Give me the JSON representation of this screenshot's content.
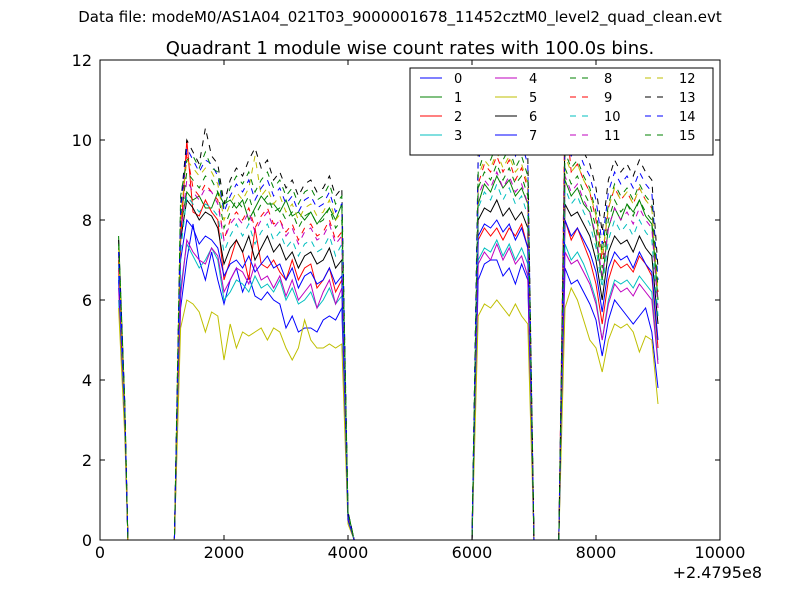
{
  "header": {
    "suptitle": "Data file: modeM0/AS1A04_021T03_9000001678_11452cztM0_level2_quad_clean.evt"
  },
  "chart_data": {
    "type": "line",
    "title": "Quadrant 1 module wise count rates with 100.0s bins.",
    "xlabel": "",
    "ylabel": "",
    "offset_label": "+2.4795e8",
    "xlim": [
      0,
      10000
    ],
    "ylim": [
      0,
      12
    ],
    "xticks": [
      0,
      2000,
      4000,
      6000,
      8000,
      10000
    ],
    "yticks": [
      0,
      2,
      4,
      6,
      8,
      10,
      12
    ],
    "grid": false,
    "legend_position": "top-right",
    "x": [
      300,
      400,
      450,
      1200,
      1300,
      1400,
      1500,
      1600,
      1700,
      1800,
      1900,
      2000,
      2100,
      2200,
      2300,
      2400,
      2500,
      2600,
      2700,
      2800,
      2900,
      3000,
      3100,
      3200,
      3300,
      3400,
      3500,
      3600,
      3700,
      3800,
      3900,
      4000,
      4100,
      6000,
      6100,
      6200,
      6300,
      6400,
      6500,
      6600,
      6700,
      6800,
      6900,
      7000,
      7400,
      7500,
      7600,
      7700,
      7800,
      7900,
      8000,
      8100,
      8200,
      8300,
      8400,
      8500,
      8600,
      8700,
      8800,
      8900,
      9000
    ],
    "series": [
      {
        "name": "0",
        "color": "#0000ff",
        "dash": "solid",
        "values": [
          6.5,
          3.0,
          0,
          0,
          5.8,
          7.0,
          7.9,
          7.0,
          6.5,
          7.2,
          6.5,
          5.9,
          6.5,
          6.8,
          6.2,
          6.6,
          6.1,
          6.0,
          6.2,
          6.0,
          5.9,
          5.3,
          5.6,
          5.2,
          5.3,
          5.3,
          5.2,
          5.5,
          5.6,
          5.5,
          5.8,
          0.6,
          0,
          0,
          6.5,
          6.9,
          7.0,
          7.0,
          6.6,
          6.8,
          6.4,
          6.9,
          6.5,
          0,
          0,
          6.8,
          6.4,
          6.5,
          6.2,
          5.9,
          5.5,
          4.6,
          5.5,
          6.0,
          5.8,
          5.6,
          5.4,
          5.6,
          5.8,
          5.2,
          3.8
        ]
      },
      {
        "name": "1",
        "color": "#008000",
        "dash": "solid",
        "values": [
          7.6,
          3.4,
          0,
          0,
          7.8,
          8.7,
          8.5,
          8.6,
          8.3,
          8.3,
          8.7,
          8.4,
          8.5,
          8.3,
          8.5,
          8.0,
          8.3,
          8.6,
          8.4,
          8.4,
          8.2,
          8.5,
          8.1,
          8.2,
          8.0,
          8.2,
          7.9,
          8.1,
          8.3,
          8.0,
          8.4,
          0.7,
          0,
          0,
          8.4,
          8.9,
          8.7,
          9.1,
          8.8,
          9.0,
          8.6,
          8.8,
          8.4,
          0,
          0,
          9.0,
          8.6,
          8.8,
          8.4,
          8.2,
          7.5,
          6.5,
          7.8,
          8.3,
          8.0,
          8.4,
          8.2,
          8.5,
          8.1,
          7.9,
          6.0
        ]
      },
      {
        "name": "2",
        "color": "#ff0000",
        "dash": "solid",
        "values": [
          6.8,
          3.1,
          0,
          0,
          7.5,
          10.0,
          8.2,
          8.1,
          8.5,
          8.2,
          8.0,
          6.5,
          7.0,
          7.5,
          7.2,
          6.5,
          7.8,
          6.9,
          6.8,
          7.0,
          6.7,
          6.5,
          7.0,
          6.5,
          6.8,
          6.9,
          6.3,
          6.5,
          6.8,
          6.2,
          6.5,
          0.6,
          0,
          0,
          7.5,
          7.8,
          7.6,
          7.8,
          7.5,
          7.8,
          7.6,
          7.9,
          7.3,
          0,
          0,
          8.0,
          7.5,
          7.8,
          7.4,
          7.0,
          6.4,
          5.4,
          6.5,
          7.0,
          6.8,
          6.9,
          6.7,
          7.1,
          6.9,
          6.6,
          4.8
        ]
      },
      {
        "name": "3",
        "color": "#00bfbf",
        "dash": "solid",
        "values": [
          6.0,
          2.8,
          0,
          0,
          6.3,
          7.4,
          7.1,
          6.8,
          7.0,
          7.3,
          7.0,
          6.0,
          6.2,
          6.5,
          6.4,
          6.2,
          6.6,
          6.3,
          6.4,
          6.2,
          6.5,
          6.0,
          6.3,
          5.9,
          6.0,
          6.2,
          5.8,
          6.0,
          6.3,
          5.9,
          6.1,
          0.5,
          0,
          0,
          7.0,
          7.3,
          7.2,
          7.5,
          7.1,
          7.4,
          7.0,
          7.3,
          6.9,
          0,
          0,
          7.4,
          7.0,
          7.2,
          6.9,
          6.5,
          6.0,
          5.0,
          6.0,
          6.5,
          6.4,
          6.5,
          6.3,
          6.6,
          6.4,
          6.2,
          4.5
        ]
      },
      {
        "name": "4",
        "color": "#bf00bf",
        "dash": "solid",
        "values": [
          6.3,
          2.9,
          0,
          0,
          6.1,
          7.5,
          7.2,
          7.0,
          6.9,
          7.3,
          7.1,
          6.2,
          6.5,
          6.8,
          6.7,
          6.4,
          6.9,
          6.5,
          6.6,
          6.3,
          6.6,
          6.1,
          6.5,
          6.0,
          6.2,
          6.4,
          5.8,
          6.2,
          6.5,
          5.9,
          6.3,
          0.5,
          0,
          0,
          6.9,
          7.2,
          7.0,
          7.4,
          7.0,
          7.3,
          6.9,
          7.1,
          6.6,
          0,
          0,
          7.2,
          6.9,
          7.0,
          6.7,
          6.4,
          5.9,
          5.0,
          5.9,
          6.4,
          6.2,
          6.3,
          6.1,
          6.4,
          6.2,
          6.0,
          4.4
        ]
      },
      {
        "name": "5",
        "color": "#bfbf00",
        "dash": "solid",
        "values": [
          5.8,
          2.6,
          0,
          0,
          5.3,
          6.0,
          5.9,
          5.7,
          5.2,
          5.7,
          5.6,
          4.5,
          5.4,
          4.8,
          5.2,
          5.1,
          5.2,
          5.3,
          5.0,
          5.3,
          5.2,
          4.8,
          4.5,
          4.8,
          5.5,
          5.0,
          4.8,
          4.8,
          4.9,
          4.8,
          4.9,
          0.4,
          0,
          0,
          5.6,
          5.9,
          5.8,
          6.0,
          5.8,
          5.6,
          5.9,
          5.6,
          5.4,
          0,
          0,
          5.8,
          6.3,
          6.0,
          5.5,
          5.0,
          4.8,
          4.2,
          5.0,
          5.4,
          5.3,
          5.4,
          5.2,
          4.7,
          5.1,
          5.0,
          3.4
        ]
      },
      {
        "name": "6",
        "color": "#000000",
        "dash": "solid",
        "values": [
          7.0,
          3.2,
          0,
          0,
          7.5,
          8.5,
          8.3,
          8.0,
          8.2,
          8.1,
          7.8,
          6.9,
          7.3,
          7.5,
          7.2,
          7.6,
          7.0,
          7.3,
          7.6,
          7.2,
          7.4,
          7.0,
          7.2,
          6.8,
          7.1,
          7.2,
          6.9,
          7.0,
          7.3,
          6.8,
          7.0,
          0.6,
          0,
          0,
          8.0,
          8.3,
          8.2,
          8.5,
          8.1,
          8.3,
          8.0,
          8.2,
          7.8,
          0,
          0,
          8.4,
          8.1,
          8.2,
          7.9,
          7.6,
          7.0,
          6.0,
          7.2,
          7.6,
          7.4,
          7.5,
          7.2,
          7.6,
          7.3,
          7.1,
          5.4
        ]
      },
      {
        "name": "7",
        "color": "#0000ff",
        "dash": "solid",
        "values": [
          6.6,
          3.0,
          0,
          0,
          7.0,
          8.0,
          7.8,
          7.4,
          7.6,
          7.5,
          7.3,
          6.6,
          6.9,
          7.0,
          6.8,
          7.1,
          6.7,
          6.9,
          7.1,
          6.8,
          6.9,
          6.5,
          6.8,
          6.3,
          6.6,
          6.7,
          6.4,
          6.5,
          6.8,
          6.4,
          6.6,
          0.5,
          0,
          0,
          7.6,
          7.9,
          7.8,
          8.0,
          7.7,
          7.9,
          7.5,
          7.8,
          7.3,
          0,
          0,
          8.0,
          7.6,
          7.8,
          7.5,
          7.2,
          6.7,
          5.7,
          6.8,
          7.2,
          7.0,
          7.1,
          6.8,
          7.2,
          6.9,
          6.7,
          5.0
        ]
      },
      {
        "name": "8",
        "color": "#008000",
        "dash": "dashed",
        "values": [
          7.2,
          3.3,
          0,
          0,
          8.0,
          9.2,
          9.0,
          8.8,
          9.1,
          9.0,
          8.7,
          7.8,
          8.2,
          8.5,
          8.3,
          8.6,
          8.1,
          8.4,
          8.6,
          8.2,
          8.3,
          8.0,
          8.2,
          7.8,
          8.1,
          8.2,
          7.9,
          8.0,
          8.3,
          7.8,
          8.0,
          0.6,
          0,
          0,
          8.8,
          9.2,
          9.0,
          9.4,
          9.0,
          9.3,
          8.9,
          9.1,
          8.6,
          0,
          0,
          9.3,
          8.9,
          9.1,
          8.7,
          8.4,
          7.8,
          6.8,
          8.0,
          8.5,
          8.2,
          8.4,
          8.1,
          8.5,
          8.2,
          8.0,
          6.0
        ]
      },
      {
        "name": "9",
        "color": "#ff0000",
        "dash": "dashed",
        "values": [
          7.0,
          3.2,
          0,
          0,
          7.7,
          9.7,
          8.8,
          8.6,
          8.9,
          8.7,
          8.5,
          7.5,
          8.0,
          8.2,
          8.0,
          8.3,
          7.8,
          8.1,
          8.3,
          7.9,
          8.0,
          7.7,
          7.9,
          7.5,
          7.8,
          7.9,
          7.6,
          7.7,
          8.0,
          7.5,
          7.7,
          0.6,
          0,
          0,
          8.9,
          9.4,
          9.2,
          9.6,
          9.2,
          9.5,
          9.0,
          9.3,
          8.8,
          0,
          0,
          10.9,
          9.2,
          9.4,
          9.0,
          8.7,
          8.0,
          7.0,
          8.3,
          8.8,
          8.5,
          8.7,
          8.4,
          8.8,
          8.5,
          8.3,
          6.2
        ]
      },
      {
        "name": "10",
        "color": "#00bfbf",
        "dash": "dashed",
        "values": [
          6.9,
          3.1,
          0,
          0,
          7.2,
          8.6,
          8.4,
          8.2,
          8.4,
          8.3,
          8.1,
          7.2,
          7.6,
          7.9,
          7.6,
          7.9,
          7.4,
          7.7,
          7.9,
          7.5,
          7.7,
          7.3,
          7.5,
          7.1,
          7.4,
          7.5,
          7.2,
          7.3,
          7.6,
          7.1,
          7.4,
          0.6,
          0,
          0,
          8.3,
          8.7,
          8.5,
          8.9,
          8.5,
          8.8,
          8.4,
          8.6,
          8.1,
          0,
          0,
          8.8,
          8.4,
          8.6,
          8.2,
          7.9,
          7.3,
          6.3,
          7.5,
          8.0,
          7.7,
          7.9,
          7.6,
          8.0,
          7.7,
          7.5,
          5.6
        ]
      },
      {
        "name": "11",
        "color": "#bf00bf",
        "dash": "dashed",
        "values": [
          7.1,
          3.2,
          0,
          0,
          7.6,
          9.0,
          8.7,
          8.5,
          8.8,
          8.7,
          8.4,
          7.5,
          7.9,
          8.1,
          7.9,
          8.2,
          7.7,
          8.0,
          8.2,
          7.8,
          8.0,
          7.6,
          7.8,
          7.4,
          7.7,
          7.8,
          7.5,
          7.6,
          7.9,
          7.4,
          7.6,
          0.6,
          0,
          0,
          8.6,
          9.0,
          8.8,
          9.2,
          8.8,
          9.1,
          8.7,
          8.9,
          8.4,
          0,
          0,
          9.1,
          8.7,
          8.9,
          8.5,
          8.2,
          7.6,
          6.6,
          7.8,
          8.3,
          8.0,
          8.2,
          7.9,
          8.3,
          8.0,
          7.8,
          5.8
        ]
      },
      {
        "name": "12",
        "color": "#bfbf00",
        "dash": "dashed",
        "values": [
          7.3,
          3.3,
          0,
          0,
          8.1,
          9.5,
          9.3,
          9.1,
          9.3,
          9.2,
          8.9,
          8.0,
          8.4,
          8.7,
          8.5,
          8.8,
          9.6,
          8.6,
          8.8,
          8.4,
          8.6,
          8.2,
          8.4,
          8.0,
          8.3,
          8.4,
          8.1,
          8.2,
          8.5,
          8.0,
          8.2,
          0.6,
          0,
          0,
          9.1,
          9.5,
          9.3,
          9.7,
          9.3,
          9.6,
          9.2,
          9.4,
          8.9,
          0,
          0,
          9.6,
          9.2,
          9.4,
          9.0,
          8.7,
          8.1,
          7.1,
          8.3,
          8.8,
          8.5,
          8.7,
          8.4,
          8.8,
          8.5,
          8.3,
          6.2
        ]
      },
      {
        "name": "13",
        "color": "#000000",
        "dash": "dashed",
        "values": [
          7.5,
          3.4,
          0,
          0,
          8.4,
          10.0,
          9.7,
          9.4,
          10.3,
          9.6,
          9.4,
          8.4,
          9.0,
          9.3,
          9.1,
          9.5,
          9.8,
          9.3,
          9.5,
          9.0,
          9.2,
          8.8,
          9.0,
          8.6,
          8.9,
          9.0,
          8.7,
          8.8,
          9.1,
          8.6,
          8.8,
          0.7,
          0,
          0,
          9.7,
          10.2,
          10.0,
          10.4,
          10.0,
          10.9,
          9.9,
          10.1,
          9.6,
          0,
          0,
          10.3,
          9.9,
          10.1,
          9.7,
          9.4,
          8.8,
          7.7,
          9.0,
          9.5,
          9.2,
          9.4,
          9.1,
          9.5,
          9.2,
          9.0,
          6.8
        ]
      },
      {
        "name": "14",
        "color": "#0000ff",
        "dash": "dashed",
        "values": [
          7.2,
          3.3,
          0,
          0,
          8.2,
          9.8,
          9.5,
          9.2,
          9.5,
          9.4,
          9.1,
          8.2,
          8.6,
          8.9,
          8.7,
          9.0,
          8.5,
          8.8,
          9.0,
          8.6,
          8.8,
          8.4,
          8.6,
          8.2,
          8.5,
          8.6,
          8.3,
          8.4,
          8.7,
          8.2,
          8.4,
          0.6,
          0,
          0,
          9.5,
          10.0,
          9.8,
          10.2,
          9.8,
          10.1,
          9.6,
          9.9,
          9.4,
          0,
          0,
          10.0,
          9.6,
          9.8,
          9.4,
          9.1,
          8.5,
          7.4,
          8.7,
          9.2,
          8.9,
          9.1,
          8.8,
          9.2,
          8.9,
          8.7,
          6.5
        ]
      },
      {
        "name": "15",
        "color": "#008000",
        "dash": "dashed",
        "values": [
          7.4,
          3.4,
          0,
          0,
          8.6,
          9.5,
          9.6,
          9.3,
          9.7,
          9.3,
          9.2,
          8.3,
          8.8,
          9.1,
          8.9,
          9.2,
          8.7,
          9.0,
          9.2,
          8.8,
          9.0,
          8.6,
          8.8,
          8.4,
          8.7,
          8.8,
          8.5,
          8.6,
          8.9,
          8.4,
          8.6,
          0.7,
          0,
          0,
          9.2,
          9.7,
          9.5,
          9.9,
          9.5,
          9.8,
          9.3,
          9.6,
          9.1,
          0,
          0,
          9.7,
          9.3,
          9.5,
          9.1,
          8.8,
          8.2,
          7.2,
          8.4,
          8.9,
          8.6,
          8.8,
          8.5,
          8.9,
          8.6,
          8.4,
          6.3
        ]
      }
    ]
  }
}
